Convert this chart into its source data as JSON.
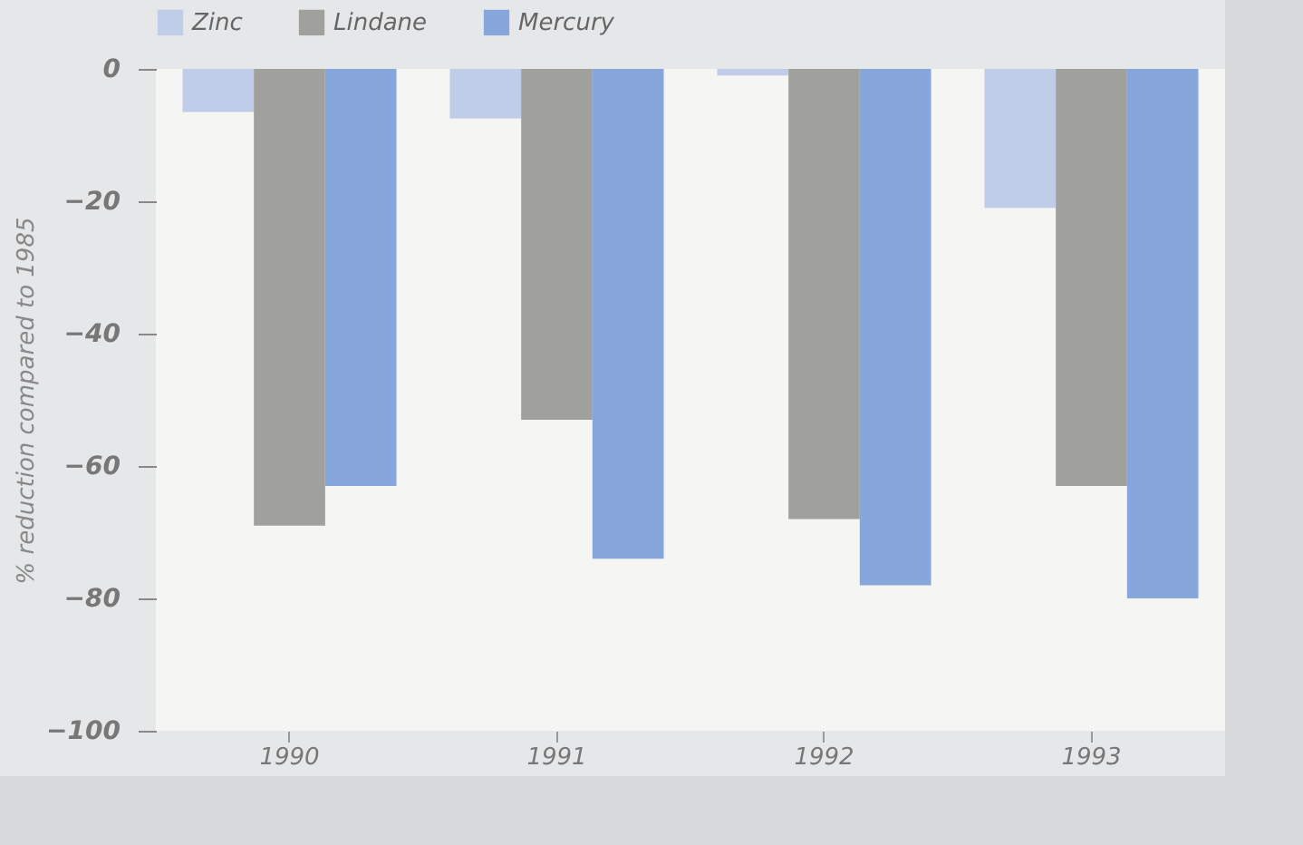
{
  "chart_data": {
    "type": "bar",
    "ylabel": "% reduction compared to 1985",
    "categories": [
      "1990",
      "1991",
      "1992",
      "1993"
    ],
    "series": [
      {
        "name": "Zinc",
        "color": "#c0cde8",
        "values": [
          -6.5,
          -7.5,
          -1,
          -21
        ]
      },
      {
        "name": "Lindane",
        "color": "#a0a09c",
        "values": [
          -69,
          -53,
          -68,
          -63
        ]
      },
      {
        "name": "Mercury",
        "color": "#86a6dc",
        "values": [
          -63,
          -74,
          -78,
          -80
        ]
      }
    ],
    "ylim": [
      -100,
      0
    ],
    "yticks": [
      0,
      -20,
      -40,
      -60,
      -80,
      -100
    ],
    "legend": "top",
    "grid": false
  }
}
